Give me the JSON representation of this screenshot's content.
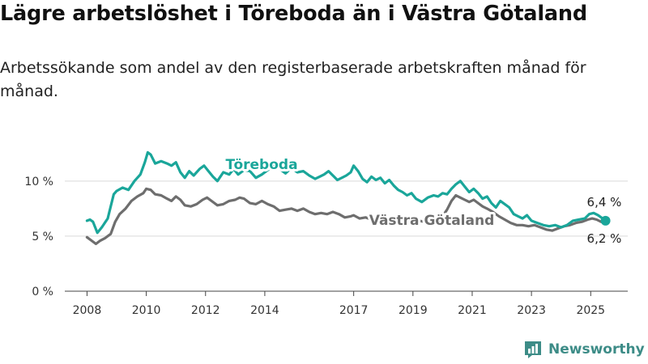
{
  "title": "Lägre arbetslöshet i Töreboda än i Västra Götaland",
  "subtitle": "Arbetssökande som andel av den registerbaserade arbetskraften månad för månad.",
  "brand": {
    "name": "Newsworthy",
    "icon": "bar-chart-logo-icon",
    "color": "#3d8c87"
  },
  "chart_data": {
    "type": "line",
    "title": "",
    "xlabel": "",
    "ylabel": "",
    "xlim": [
      2007.25,
      2026.25
    ],
    "ylim": [
      0,
      13
    ],
    "y_ticks": [
      {
        "value": 0,
        "label": "0 %"
      },
      {
        "value": 5,
        "label": "5 %"
      },
      {
        "value": 10,
        "label": "10 %"
      }
    ],
    "x_ticks": [
      {
        "value": 2008,
        "label": "2008"
      },
      {
        "value": 2010,
        "label": "2010"
      },
      {
        "value": 2012,
        "label": "2012"
      },
      {
        "value": 2014,
        "label": "2014"
      },
      {
        "value": 2017,
        "label": "2017"
      },
      {
        "value": 2019,
        "label": "2019"
      },
      {
        "value": 2021,
        "label": "2021"
      },
      {
        "value": 2023,
        "label": "2023"
      },
      {
        "value": 2025,
        "label": "2025"
      }
    ],
    "grid": true,
    "series": [
      {
        "name": "Töreboda",
        "color": "#1aa69a",
        "end_label": "6,4 %",
        "points": [
          [
            2008.0,
            6.4
          ],
          [
            2008.1,
            6.5
          ],
          [
            2008.2,
            6.3
          ],
          [
            2008.35,
            5.3
          ],
          [
            2008.5,
            5.8
          ],
          [
            2008.7,
            6.6
          ],
          [
            2008.9,
            8.8
          ],
          [
            2009.0,
            9.1
          ],
          [
            2009.2,
            9.4
          ],
          [
            2009.4,
            9.2
          ],
          [
            2009.6,
            10.0
          ],
          [
            2009.8,
            10.6
          ],
          [
            2009.95,
            11.7
          ],
          [
            2010.05,
            12.6
          ],
          [
            2010.15,
            12.4
          ],
          [
            2010.3,
            11.6
          ],
          [
            2010.5,
            11.8
          ],
          [
            2010.7,
            11.6
          ],
          [
            2010.85,
            11.4
          ],
          [
            2011.0,
            11.7
          ],
          [
            2011.15,
            10.8
          ],
          [
            2011.3,
            10.3
          ],
          [
            2011.45,
            10.9
          ],
          [
            2011.6,
            10.5
          ],
          [
            2011.8,
            11.1
          ],
          [
            2011.95,
            11.4
          ],
          [
            2012.1,
            10.9
          ],
          [
            2012.25,
            10.4
          ],
          [
            2012.4,
            10.0
          ],
          [
            2012.6,
            10.8
          ],
          [
            2012.8,
            10.6
          ],
          [
            2012.95,
            11.1
          ],
          [
            2013.1,
            10.6
          ],
          [
            2013.3,
            11.0
          ],
          [
            2013.5,
            10.9
          ],
          [
            2013.7,
            10.3
          ],
          [
            2013.9,
            10.6
          ],
          [
            2014.1,
            11.0
          ],
          [
            2014.3,
            11.4
          ],
          [
            2014.5,
            11.1
          ],
          [
            2014.7,
            10.7
          ],
          [
            2014.9,
            11.2
          ],
          [
            2015.1,
            10.8
          ],
          [
            2015.3,
            10.9
          ],
          [
            2015.5,
            10.5
          ],
          [
            2015.7,
            10.2
          ],
          [
            2015.85,
            10.4
          ],
          [
            2016.0,
            10.6
          ],
          [
            2016.15,
            10.9
          ],
          [
            2016.3,
            10.5
          ],
          [
            2016.45,
            10.1
          ],
          [
            2016.6,
            10.3
          ],
          [
            2016.75,
            10.5
          ],
          [
            2016.9,
            10.8
          ],
          [
            2017.0,
            11.4
          ],
          [
            2017.15,
            10.9
          ],
          [
            2017.3,
            10.2
          ],
          [
            2017.45,
            9.9
          ],
          [
            2017.6,
            10.4
          ],
          [
            2017.75,
            10.1
          ],
          [
            2017.9,
            10.3
          ],
          [
            2018.05,
            9.8
          ],
          [
            2018.2,
            10.1
          ],
          [
            2018.35,
            9.6
          ],
          [
            2018.5,
            9.2
          ],
          [
            2018.65,
            9.0
          ],
          [
            2018.8,
            8.7
          ],
          [
            2018.95,
            8.9
          ],
          [
            2019.1,
            8.4
          ],
          [
            2019.3,
            8.1
          ],
          [
            2019.5,
            8.5
          ],
          [
            2019.7,
            8.7
          ],
          [
            2019.85,
            8.6
          ],
          [
            2020.0,
            8.9
          ],
          [
            2020.15,
            8.8
          ],
          [
            2020.3,
            9.3
          ],
          [
            2020.45,
            9.7
          ],
          [
            2020.6,
            10.0
          ],
          [
            2020.75,
            9.5
          ],
          [
            2020.9,
            9.0
          ],
          [
            2021.05,
            9.3
          ],
          [
            2021.2,
            8.9
          ],
          [
            2021.35,
            8.4
          ],
          [
            2021.5,
            8.6
          ],
          [
            2021.65,
            8.0
          ],
          [
            2021.8,
            7.6
          ],
          [
            2021.95,
            8.2
          ],
          [
            2022.1,
            7.9
          ],
          [
            2022.25,
            7.6
          ],
          [
            2022.4,
            7.0
          ],
          [
            2022.55,
            6.8
          ],
          [
            2022.7,
            6.6
          ],
          [
            2022.85,
            6.9
          ],
          [
            2023.0,
            6.4
          ],
          [
            2023.2,
            6.2
          ],
          [
            2023.4,
            6.0
          ],
          [
            2023.6,
            5.9
          ],
          [
            2023.8,
            6.0
          ],
          [
            2024.0,
            5.8
          ],
          [
            2024.2,
            6.0
          ],
          [
            2024.4,
            6.4
          ],
          [
            2024.6,
            6.5
          ],
          [
            2024.8,
            6.6
          ],
          [
            2024.95,
            7.0
          ],
          [
            2025.1,
            7.1
          ],
          [
            2025.25,
            6.9
          ],
          [
            2025.4,
            6.6
          ],
          [
            2025.5,
            6.4
          ]
        ]
      },
      {
        "name": "Västra Götaland",
        "color": "#6e6e6e",
        "end_label": "6,2 %",
        "points": [
          [
            2008.0,
            4.9
          ],
          [
            2008.15,
            4.6
          ],
          [
            2008.3,
            4.3
          ],
          [
            2008.45,
            4.6
          ],
          [
            2008.6,
            4.8
          ],
          [
            2008.8,
            5.2
          ],
          [
            2008.95,
            6.3
          ],
          [
            2009.1,
            7.0
          ],
          [
            2009.3,
            7.5
          ],
          [
            2009.5,
            8.2
          ],
          [
            2009.7,
            8.6
          ],
          [
            2009.9,
            8.9
          ],
          [
            2010.0,
            9.3
          ],
          [
            2010.15,
            9.2
          ],
          [
            2010.3,
            8.8
          ],
          [
            2010.5,
            8.7
          ],
          [
            2010.7,
            8.4
          ],
          [
            2010.85,
            8.2
          ],
          [
            2011.0,
            8.6
          ],
          [
            2011.15,
            8.3
          ],
          [
            2011.3,
            7.8
          ],
          [
            2011.5,
            7.7
          ],
          [
            2011.7,
            7.9
          ],
          [
            2011.9,
            8.3
          ],
          [
            2012.05,
            8.5
          ],
          [
            2012.2,
            8.2
          ],
          [
            2012.4,
            7.8
          ],
          [
            2012.6,
            7.9
          ],
          [
            2012.8,
            8.2
          ],
          [
            2013.0,
            8.3
          ],
          [
            2013.15,
            8.5
          ],
          [
            2013.3,
            8.4
          ],
          [
            2013.5,
            8.0
          ],
          [
            2013.7,
            7.9
          ],
          [
            2013.9,
            8.2
          ],
          [
            2014.1,
            7.9
          ],
          [
            2014.3,
            7.7
          ],
          [
            2014.5,
            7.3
          ],
          [
            2014.7,
            7.4
          ],
          [
            2014.9,
            7.5
          ],
          [
            2015.1,
            7.3
          ],
          [
            2015.3,
            7.5
          ],
          [
            2015.5,
            7.2
          ],
          [
            2015.7,
            7.0
          ],
          [
            2015.9,
            7.1
          ],
          [
            2016.1,
            7.0
          ],
          [
            2016.3,
            7.2
          ],
          [
            2016.5,
            7.0
          ],
          [
            2016.7,
            6.7
          ],
          [
            2016.9,
            6.8
          ],
          [
            2017.0,
            6.9
          ],
          [
            2017.2,
            6.6
          ],
          [
            2017.4,
            6.7
          ],
          [
            2017.6,
            6.5
          ],
          [
            2017.8,
            6.4
          ],
          [
            2018.0,
            6.5
          ],
          [
            2018.2,
            6.3
          ],
          [
            2018.4,
            6.4
          ],
          [
            2018.6,
            6.2
          ],
          [
            2018.8,
            6.3
          ],
          [
            2019.0,
            6.2
          ],
          [
            2019.2,
            6.4
          ],
          [
            2019.4,
            6.3
          ],
          [
            2019.6,
            6.1
          ],
          [
            2019.8,
            6.2
          ],
          [
            2020.0,
            6.8
          ],
          [
            2020.15,
            7.4
          ],
          [
            2020.3,
            8.2
          ],
          [
            2020.45,
            8.7
          ],
          [
            2020.6,
            8.5
          ],
          [
            2020.75,
            8.3
          ],
          [
            2020.9,
            8.1
          ],
          [
            2021.05,
            8.3
          ],
          [
            2021.2,
            8.0
          ],
          [
            2021.35,
            7.7
          ],
          [
            2021.5,
            7.5
          ],
          [
            2021.7,
            7.2
          ],
          [
            2021.9,
            6.8
          ],
          [
            2022.1,
            6.5
          ],
          [
            2022.3,
            6.2
          ],
          [
            2022.5,
            6.0
          ],
          [
            2022.7,
            6.0
          ],
          [
            2022.9,
            5.9
          ],
          [
            2023.1,
            6.0
          ],
          [
            2023.3,
            5.8
          ],
          [
            2023.5,
            5.6
          ],
          [
            2023.7,
            5.5
          ],
          [
            2023.9,
            5.7
          ],
          [
            2024.1,
            5.9
          ],
          [
            2024.3,
            6.0
          ],
          [
            2024.5,
            6.2
          ],
          [
            2024.7,
            6.3
          ],
          [
            2024.9,
            6.5
          ],
          [
            2025.05,
            6.6
          ],
          [
            2025.2,
            6.5
          ],
          [
            2025.35,
            6.3
          ],
          [
            2025.5,
            6.2
          ]
        ]
      }
    ]
  }
}
